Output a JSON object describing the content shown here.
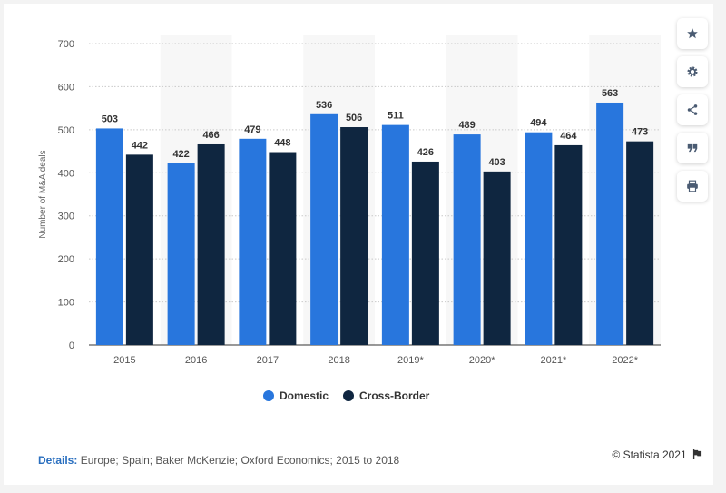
{
  "chart_data": {
    "type": "bar",
    "categories": [
      "2015",
      "2016",
      "2017",
      "2018",
      "2019*",
      "2020*",
      "2021*",
      "2022*"
    ],
    "series": [
      {
        "name": "Domestic",
        "color": "#2876dd",
        "values": [
          503,
          422,
          479,
          536,
          511,
          489,
          494,
          563
        ]
      },
      {
        "name": "Cross-Border",
        "color": "#0f2640",
        "values": [
          442,
          466,
          448,
          506,
          426,
          403,
          464,
          473
        ]
      }
    ],
    "ylabel": "Number of M&A deals",
    "ylim": [
      0,
      700
    ],
    "yticks": [
      "0",
      "100",
      "200",
      "300",
      "400",
      "500",
      "600",
      "700"
    ],
    "grid": true,
    "legend_position": "bottom",
    "show_data_labels": true
  },
  "footer": {
    "details_label": "Details:",
    "details_text": "Europe; Spain; Baker McKenzie; Oxford Economics; 2015 to 2018",
    "credit": "© Statista 2021"
  },
  "toolbar": {
    "icons": [
      "star-icon",
      "gear-icon",
      "share-icon",
      "quote-icon",
      "print-icon"
    ]
  }
}
